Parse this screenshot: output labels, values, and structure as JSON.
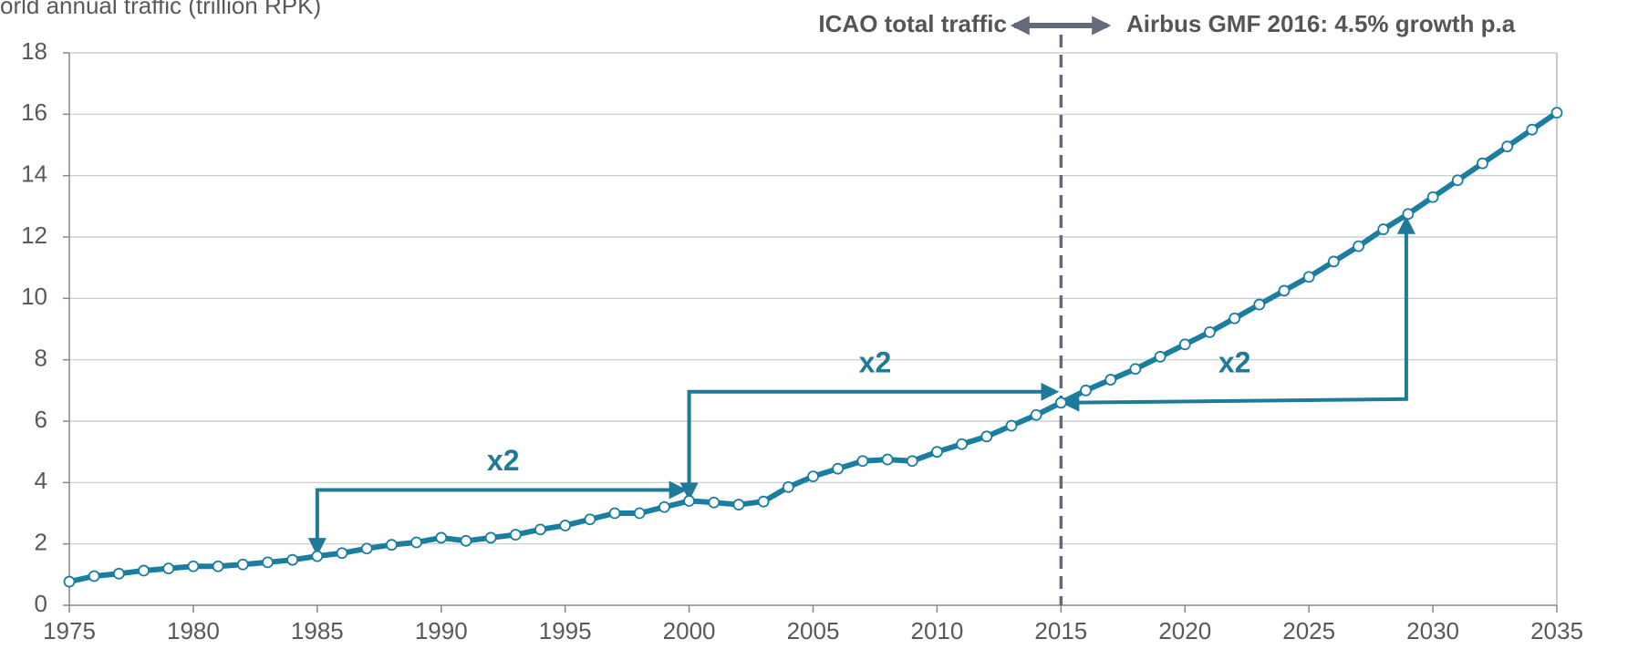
{
  "chart_data": {
    "type": "line",
    "y_label": "orld annual traffic (trillion RPK)",
    "annotations": {
      "left": "ICAO total traffic",
      "right": "Airbus GMF 2016: 4.5% growth p.a",
      "doubling": [
        "x2",
        "x2",
        "x2"
      ]
    },
    "x": [
      1975,
      1976,
      1977,
      1978,
      1979,
      1980,
      1981,
      1982,
      1983,
      1984,
      1985,
      1986,
      1987,
      1988,
      1989,
      1990,
      1991,
      1992,
      1993,
      1994,
      1995,
      1996,
      1997,
      1998,
      1999,
      2000,
      2001,
      2002,
      2003,
      2004,
      2005,
      2006,
      2007,
      2008,
      2009,
      2010,
      2011,
      2012,
      2013,
      2014,
      2015,
      2016,
      2017,
      2018,
      2019,
      2020,
      2021,
      2022,
      2023,
      2024,
      2025,
      2026,
      2027,
      2028,
      2029,
      2030,
      2031,
      2032,
      2033,
      2034,
      2035
    ],
    "series": [
      {
        "name": "World annual traffic",
        "color": "#1b7ea1",
        "values": [
          0.77,
          0.95,
          1.03,
          1.13,
          1.2,
          1.27,
          1.27,
          1.33,
          1.4,
          1.48,
          1.6,
          1.7,
          1.85,
          1.97,
          2.05,
          2.2,
          2.1,
          2.2,
          2.3,
          2.47,
          2.6,
          2.8,
          3.0,
          3.0,
          3.2,
          3.4,
          3.35,
          3.28,
          3.38,
          3.85,
          4.2,
          4.45,
          4.7,
          4.75,
          4.7,
          5.0,
          5.25,
          5.5,
          5.85,
          6.2,
          6.6,
          7.0,
          7.35,
          7.7,
          8.1,
          8.5,
          8.9,
          9.35,
          9.8,
          10.25,
          10.7,
          11.2,
          11.7,
          12.25,
          12.75,
          13.3,
          13.85,
          14.4,
          14.95,
          15.5,
          16.05
        ]
      }
    ],
    "xlim": [
      1975,
      2035
    ],
    "xticks": [
      1975,
      1980,
      1985,
      1990,
      1995,
      2000,
      2005,
      2010,
      2015,
      2020,
      2025,
      2030,
      2035
    ],
    "ylim": [
      0,
      18
    ],
    "yticks": [
      0,
      2,
      4,
      6,
      8,
      10,
      12,
      14,
      16,
      18
    ],
    "grid": true
  }
}
